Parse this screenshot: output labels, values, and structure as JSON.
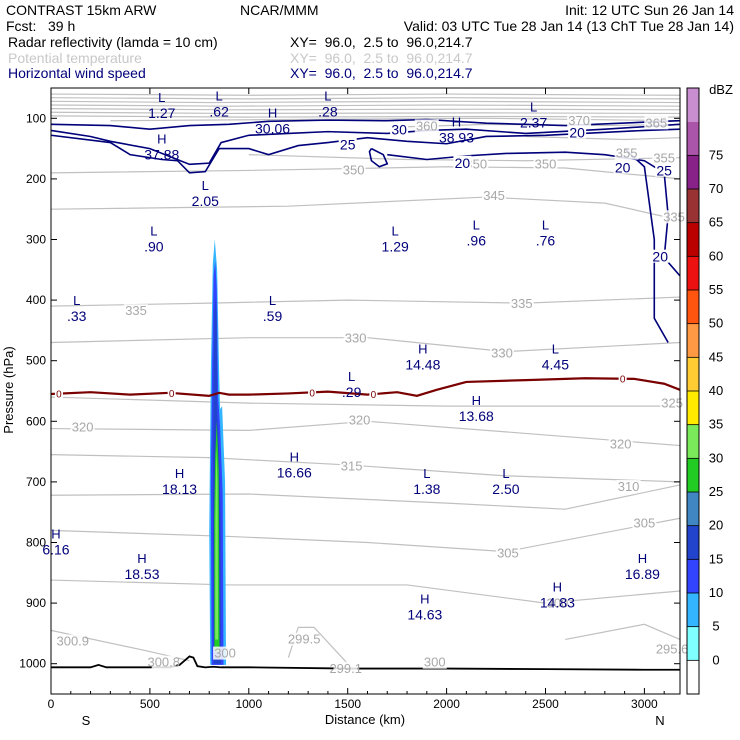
{
  "header": {
    "model": "CONTRAST 15km ARW",
    "center": "NCAR/MMM",
    "init": "Init: 12 UTC Sun 26 Jan 14",
    "fcst": "Fcst:   39 h",
    "valid": "Valid: 03 UTC Tue 28 Jan 14 (13 ChT Tue 28 Jan 14)"
  },
  "fields": [
    {
      "name": "Radar reflectivity (lamda = 10 cm)",
      "xy": "XY=  96.0,  2.5 to  96.0,214.7",
      "color": "#000000"
    },
    {
      "name": "Potential temperature",
      "xy": "XY=  96.0,  2.5 to  96.0,214.7",
      "color": "#c8c8c8"
    },
    {
      "name": "Horizontal wind speed",
      "xy": "XY=  96.0,  2.5 to  96.0,214.7",
      "color": "#00007a"
    }
  ],
  "chart_data": {
    "type": "cross-section",
    "xlabel": "Distance (km)",
    "ylabel": "Pressure (hPa)",
    "xlim": [
      0,
      3180
    ],
    "ylim": [
      50,
      1050
    ],
    "x_ticks": [
      0,
      500,
      1000,
      1500,
      2000,
      2500,
      3000
    ],
    "x_tick_labels": [
      "0",
      "500",
      "1000",
      "1500",
      "2000",
      "2500",
      "3000"
    ],
    "y_ticks": [
      100,
      200,
      300,
      400,
      500,
      600,
      700,
      800,
      900,
      1000
    ],
    "y_tick_labels": [
      "100",
      "200",
      "300",
      "400",
      "500",
      "600",
      "700",
      "800",
      "900",
      "1000"
    ],
    "end_labels": {
      "left": "S",
      "right": "N"
    },
    "colorbar": {
      "unit": "dBZ",
      "levels": [
        "0",
        "5",
        "10",
        "15",
        "20",
        "25",
        "30",
        "35",
        "40",
        "45",
        "50",
        "55",
        "60",
        "65",
        "70",
        "75"
      ],
      "colors": [
        "#ffffff",
        "#7fffff",
        "#33b5ff",
        "#3344ff",
        "#2244cc",
        "#3f86c2",
        "#22cc22",
        "#7aea5a",
        "#ffea00",
        "#ffcc33",
        "#ff9944",
        "#ff5511",
        "#ee1111",
        "#bb0000",
        "#993333",
        "#882288",
        "#aa55aa",
        "#c88ed0"
      ]
    },
    "freezing_level": {
      "label": "0",
      "x": [
        0,
        200,
        400,
        600,
        800,
        850,
        900,
        1000,
        1200,
        1400,
        1600,
        1750,
        1850,
        1950,
        2100,
        2400,
        2700,
        2950,
        3100,
        3180
      ],
      "p": [
        555,
        552,
        556,
        553,
        558,
        553,
        556,
        556,
        554,
        551,
        556,
        552,
        558,
        548,
        535,
        532,
        529,
        530,
        538,
        548
      ],
      "label_x": [
        40,
        610,
        1320,
        1630,
        2890
      ]
    },
    "terrain": {
      "x": [
        0,
        200,
        240,
        280,
        600,
        650,
        700,
        720,
        740,
        780,
        820,
        860,
        900,
        1000,
        1500,
        2000,
        2500,
        3000,
        3180
      ],
      "p": [
        1006,
        1006,
        1002,
        1006,
        1006,
        1002,
        988,
        990,
        1004,
        1006,
        1005,
        1006,
        1006,
        1006,
        1008,
        1008,
        1009,
        1010,
        1010
      ]
    },
    "reflectivity_cores": [
      {
        "dbz": 5,
        "points": [
          [
            805,
            1002
          ],
          [
            800,
            780
          ],
          [
            808,
            520
          ],
          [
            818,
            340
          ],
          [
            828,
            300
          ],
          [
            840,
            350
          ],
          [
            850,
            520
          ],
          [
            855,
            580
          ],
          [
            865,
            575
          ],
          [
            880,
            700
          ],
          [
            885,
            1002
          ]
        ]
      },
      {
        "dbz": 10,
        "points": [
          [
            812,
            1002
          ],
          [
            808,
            700
          ],
          [
            815,
            500
          ],
          [
            822,
            360
          ],
          [
            830,
            335
          ],
          [
            838,
            380
          ],
          [
            845,
            560
          ],
          [
            855,
            610
          ],
          [
            868,
            720
          ],
          [
            872,
            1002
          ]
        ]
      },
      {
        "dbz": 15,
        "points": [
          [
            822,
            1000
          ],
          [
            818,
            720
          ],
          [
            822,
            520
          ],
          [
            826,
            420
          ],
          [
            832,
            395
          ],
          [
            838,
            440
          ],
          [
            840,
            580
          ],
          [
            848,
            640
          ],
          [
            858,
            760
          ],
          [
            860,
            1000
          ]
        ]
      },
      {
        "dbz": 25,
        "points": [
          [
            826,
            980
          ],
          [
            825,
            760
          ],
          [
            830,
            660
          ],
          [
            838,
            600
          ],
          [
            848,
            680
          ],
          [
            852,
            980
          ]
        ]
      },
      {
        "dbz": 30,
        "points": [
          [
            830,
            960
          ],
          [
            831,
            760
          ],
          [
            836,
            640
          ],
          [
            842,
            700
          ],
          [
            845,
            960
          ]
        ]
      }
    ],
    "potential_temperature_labels": [
      {
        "text": "370",
        "x": 2670,
        "p": 106
      },
      {
        "text": "365",
        "x": 3060,
        "p": 110
      },
      {
        "text": "360",
        "x": 1900,
        "p": 115
      },
      {
        "text": "355",
        "x": 2910,
        "p": 160
      },
      {
        "text": "355",
        "x": 3100,
        "p": 168
      },
      {
        "text": "350",
        "x": 1530,
        "p": 188
      },
      {
        "text": "350",
        "x": 2150,
        "p": 178
      },
      {
        "text": "350",
        "x": 2500,
        "p": 178
      },
      {
        "text": "345",
        "x": 2240,
        "p": 230
      },
      {
        "text": "335",
        "x": 3150,
        "p": 265
      },
      {
        "text": "335",
        "x": 430,
        "p": 420
      },
      {
        "text": "335",
        "x": 2380,
        "p": 408
      },
      {
        "text": "330",
        "x": 1540,
        "p": 465
      },
      {
        "text": "330",
        "x": 2280,
        "p": 490
      },
      {
        "text": "325",
        "x": 3140,
        "p": 572
      },
      {
        "text": "320",
        "x": 160,
        "p": 612
      },
      {
        "text": "320",
        "x": 1560,
        "p": 600
      },
      {
        "text": "320",
        "x": 2880,
        "p": 640
      },
      {
        "text": "315",
        "x": 1520,
        "p": 676
      },
      {
        "text": "310",
        "x": 2920,
        "p": 710
      },
      {
        "text": "305",
        "x": 3000,
        "p": 770
      },
      {
        "text": "305",
        "x": 2310,
        "p": 820
      },
      {
        "text": "300",
        "x": 2560,
        "p": 902
      },
      {
        "text": "300.9",
        "x": 110,
        "p": 965
      },
      {
        "text": "300.8",
        "x": 570,
        "p": 1000
      },
      {
        "text": "300",
        "x": 880,
        "p": 985
      },
      {
        "text": "299.5",
        "x": 1280,
        "p": 962
      },
      {
        "text": "299.1",
        "x": 1490,
        "p": 1010
      },
      {
        "text": "300",
        "x": 1940,
        "p": 1000
      },
      {
        "text": "295.6",
        "x": 3140,
        "p": 978
      }
    ],
    "wind_speed_labels": [
      {
        "text": "30",
        "x": 1760,
        "p": 120
      },
      {
        "text": "25",
        "x": 1500,
        "p": 145
      },
      {
        "text": "20",
        "x": 2080,
        "p": 175
      },
      {
        "text": "20",
        "x": 2660,
        "p": 125
      },
      {
        "text": "20",
        "x": 2890,
        "p": 183
      },
      {
        "text": "25",
        "x": 3100,
        "p": 188
      },
      {
        "text": "20",
        "x": 3080,
        "p": 330
      }
    ],
    "extrema": [
      {
        "type": "L",
        "value": "1.27",
        "x": 560,
        "p": 85
      },
      {
        "type": "L",
        "value": ".62",
        "x": 850,
        "p": 82
      },
      {
        "type": "L",
        "value": ".28",
        "x": 1400,
        "p": 82
      },
      {
        "type": "H",
        "value": "30.06",
        "x": 1120,
        "p": 110
      },
      {
        "type": "H",
        "value": "38.93",
        "x": 2050,
        "p": 125
      },
      {
        "type": "L",
        "value": "2.37",
        "x": 2440,
        "p": 100
      },
      {
        "type": "H",
        "value": "37.88",
        "x": 560,
        "p": 153
      },
      {
        "type": "L",
        "value": "2.05",
        "x": 780,
        "p": 230
      },
      {
        "type": "L",
        "value": ".90",
        "x": 520,
        "p": 305
      },
      {
        "type": "L",
        "value": "1.29",
        "x": 1740,
        "p": 305
      },
      {
        "type": "L",
        "value": ".96",
        "x": 2150,
        "p": 295
      },
      {
        "type": "L",
        "value": ".76",
        "x": 2500,
        "p": 295
      },
      {
        "type": "L",
        "value": ".33",
        "x": 130,
        "p": 420
      },
      {
        "type": "L",
        "value": ".59",
        "x": 1120,
        "p": 420
      },
      {
        "type": "H",
        "value": "14.48",
        "x": 1880,
        "p": 500
      },
      {
        "type": "L",
        "value": "4.45",
        "x": 2550,
        "p": 500
      },
      {
        "type": "L",
        "value": ".29",
        "x": 1520,
        "p": 545
      },
      {
        "type": "H",
        "value": "13.68",
        "x": 2150,
        "p": 585
      },
      {
        "type": "H",
        "value": "16.66",
        "x": 1230,
        "p": 678
      },
      {
        "type": "H",
        "value": "18.13",
        "x": 650,
        "p": 705
      },
      {
        "type": "L",
        "value": "1.38",
        "x": 1900,
        "p": 705
      },
      {
        "type": "L",
        "value": "2.50",
        "x": 2300,
        "p": 705
      },
      {
        "type": "H",
        "value": "6.16",
        "x": 25,
        "p": 805
      },
      {
        "type": "H",
        "value": "18.53",
        "x": 460,
        "p": 845
      },
      {
        "type": "H",
        "value": "14.83",
        "x": 2560,
        "p": 892
      },
      {
        "type": "H",
        "value": "16.89",
        "x": 2990,
        "p": 845
      },
      {
        "type": "H",
        "value": "14.63",
        "x": 1890,
        "p": 912
      }
    ]
  }
}
